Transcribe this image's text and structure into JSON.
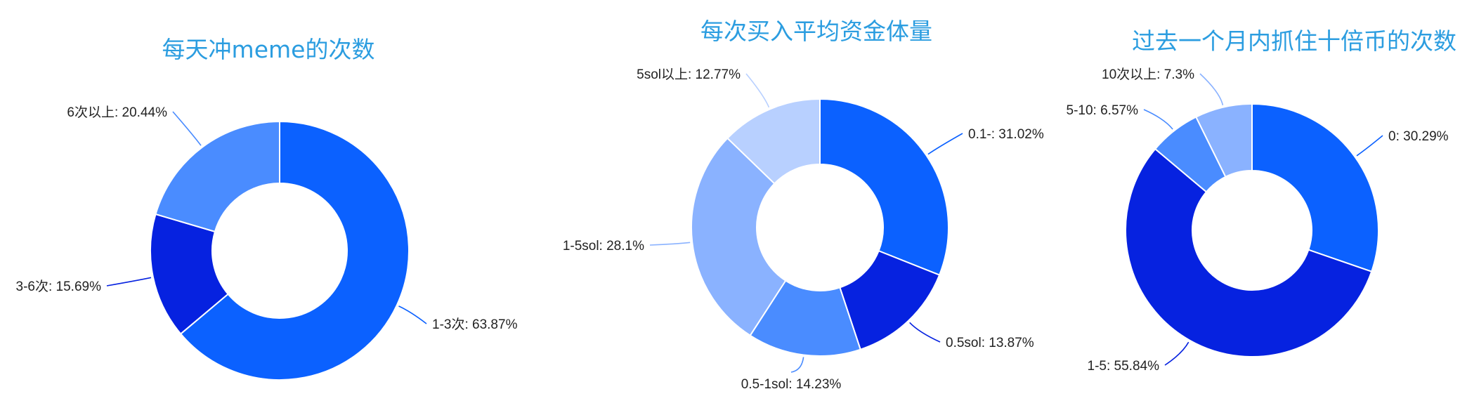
{
  "chart_data": [
    {
      "type": "pie",
      "title": "每天冲meme的次数",
      "categories": [
        "1-3次",
        "3-6次",
        "6次以上"
      ],
      "values": [
        63.87,
        15.69,
        20.44
      ],
      "labels": [
        "1-3次: 63.87%",
        "3-6次: 15.69%",
        "6次以上: 20.44%"
      ],
      "colors": [
        "#0b61ff",
        "#0622e0",
        "#4a8cff"
      ],
      "legend": "none"
    },
    {
      "type": "pie",
      "title": "每次买入平均资金体量",
      "categories": [
        "0.1-",
        "0.5sol",
        "0.5-1sol",
        "1-5sol",
        "5sol以上"
      ],
      "values": [
        31.02,
        13.87,
        14.23,
        28.1,
        12.77
      ],
      "labels": [
        "0.1-: 31.02%",
        "0.5sol: 13.87%",
        "0.5-1sol: 14.23%",
        "1-5sol: 28.1%",
        "5sol以上: 12.77%"
      ],
      "colors": [
        "#0b61ff",
        "#0622e0",
        "#4a8cff",
        "#8ab2ff",
        "#b8d0ff"
      ],
      "legend": "none"
    },
    {
      "type": "pie",
      "title": "过去一个月内抓住十倍币的次数",
      "categories": [
        "0",
        "1-5",
        "5-10",
        "10次以上"
      ],
      "values": [
        30.29,
        55.84,
        6.57,
        7.3
      ],
      "labels": [
        "0: 30.29%",
        "1-5: 55.84%",
        "5-10: 6.57%",
        "10次以上: 7.3%"
      ],
      "colors": [
        "#0b61ff",
        "#0622e0",
        "#4a8cff",
        "#8ab2ff"
      ],
      "legend": "none"
    }
  ]
}
